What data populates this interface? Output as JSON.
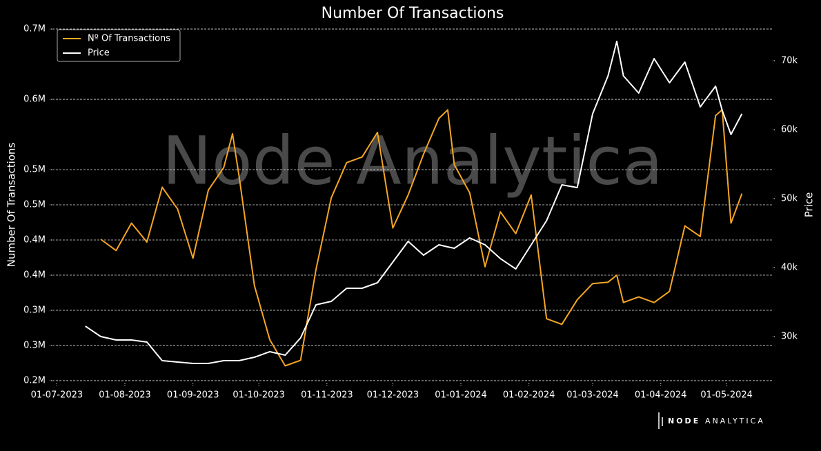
{
  "chart_data": {
    "type": "line",
    "title": "Number Of Transactions",
    "ylabel": "Number Of Transactions",
    "y2label": "Price",
    "watermark": "Node Analytica",
    "logo_bold": "NODE",
    "logo_light": "ANALYTICA",
    "legend": "upper left",
    "grid": true,
    "x": [
      "2023-07-14",
      "2023-07-21",
      "2023-07-28",
      "2023-08-04",
      "2023-08-11",
      "2023-08-18",
      "2023-08-25",
      "2023-09-01",
      "2023-09-08",
      "2023-09-15",
      "2023-09-19",
      "2023-09-22",
      "2023-09-29",
      "2023-10-06",
      "2023-10-13",
      "2023-10-20",
      "2023-10-27",
      "2023-11-03",
      "2023-11-10",
      "2023-11-17",
      "2023-11-24",
      "2023-12-01",
      "2023-12-08",
      "2023-12-15",
      "2023-12-22",
      "2023-12-26",
      "2023-12-29",
      "2024-01-05",
      "2024-01-12",
      "2024-01-19",
      "2024-01-26",
      "2024-02-02",
      "2024-02-09",
      "2024-02-16",
      "2024-02-23",
      "2024-03-01",
      "2024-03-08",
      "2024-03-12",
      "2024-03-15",
      "2024-03-22",
      "2024-03-29",
      "2024-04-05",
      "2024-04-12",
      "2024-04-19",
      "2024-04-26",
      "2024-04-29",
      "2024-05-03",
      "2024-05-08"
    ],
    "series": [
      {
        "name": "Nº Of Transactions",
        "color": "#f5a623",
        "axis": "y",
        "values": [
          null,
          401000,
          385000,
          424000,
          397000,
          475000,
          444000,
          374000,
          471000,
          503000,
          551000,
          491000,
          335000,
          258000,
          221000,
          229000,
          358000,
          460000,
          510000,
          518000,
          553000,
          417000,
          464000,
          522000,
          573000,
          585000,
          507000,
          467000,
          362000,
          440000,
          409000,
          464000,
          288000,
          280000,
          315000,
          338000,
          340000,
          350000,
          311000,
          319000,
          311000,
          327000,
          420000,
          405000,
          577000,
          585000,
          424000,
          466000
        ]
      },
      {
        "name": "Price",
        "color": "#ffffff",
        "axis": "y2",
        "values": [
          31500,
          30000,
          29500,
          29500,
          29200,
          26500,
          26300,
          26100,
          26100,
          26500,
          26500,
          26500,
          27000,
          27800,
          27300,
          29800,
          34600,
          35100,
          37000,
          37000,
          37800,
          40800,
          43800,
          41800,
          43300,
          43000,
          42800,
          44300,
          43300,
          41300,
          39800,
          43300,
          46800,
          52000,
          51600,
          62300,
          67800,
          72800,
          67800,
          65300,
          70300,
          66800,
          69800,
          63300,
          66300,
          62800,
          59300,
          62300
        ]
      }
    ],
    "xlim": [
      "2023-06-29",
      "2024-05-22"
    ],
    "xticks": [
      {
        "value": "2023-07-01",
        "label": "01-07-2023"
      },
      {
        "value": "2023-08-01",
        "label": "01-08-2023"
      },
      {
        "value": "2023-09-01",
        "label": "01-09-2023"
      },
      {
        "value": "2023-10-01",
        "label": "01-10-2023"
      },
      {
        "value": "2023-11-01",
        "label": "01-11-2023"
      },
      {
        "value": "2023-12-01",
        "label": "01-12-2023"
      },
      {
        "value": "2024-01-01",
        "label": "01-01-2024"
      },
      {
        "value": "2024-02-01",
        "label": "01-02-2024"
      },
      {
        "value": "2024-03-01",
        "label": "01-03-2024"
      },
      {
        "value": "2024-04-01",
        "label": "01-04-2024"
      },
      {
        "value": "2024-05-01",
        "label": "01-05-2024"
      }
    ],
    "ylim": [
      196000,
      704000
    ],
    "yticks": [
      {
        "value": 200000,
        "label": "0.2M"
      },
      {
        "value": 250000,
        "label": "0.3M"
      },
      {
        "value": 300000,
        "label": "0.3M"
      },
      {
        "value": 350000,
        "label": "0.4M"
      },
      {
        "value": 400000,
        "label": "0.4M"
      },
      {
        "value": 450000,
        "label": "0.5M"
      },
      {
        "value": 500000,
        "label": "0.5M"
      },
      {
        "value": 600000,
        "label": "0.6M"
      },
      {
        "value": 700000,
        "label": "0.7M"
      }
    ],
    "y2lim": [
      23200,
      75000
    ],
    "y2ticks": [
      {
        "value": 30000,
        "label": "30k"
      },
      {
        "value": 40000,
        "label": "40k"
      },
      {
        "value": 50000,
        "label": "50k"
      },
      {
        "value": 60000,
        "label": "60k"
      },
      {
        "value": 70000,
        "label": "70k"
      }
    ]
  }
}
